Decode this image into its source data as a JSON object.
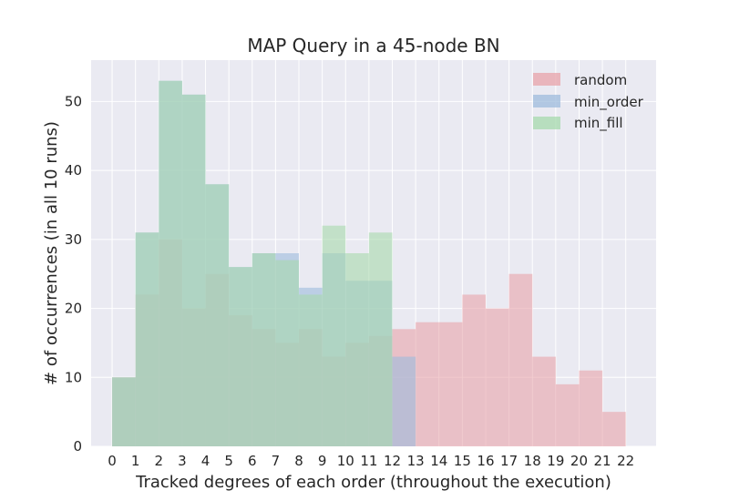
{
  "chart_data": {
    "type": "bar",
    "title": "MAP Query in a 45-node BN",
    "xlabel": "Tracked degrees of each order (throughout the execution)",
    "ylabel": "# of occurrences (in all 10 runs)",
    "x_ticks": [
      "0",
      "1",
      "2",
      "3",
      "4",
      "5",
      "6",
      "7",
      "8",
      "9",
      "10",
      "11",
      "12",
      "13",
      "14",
      "15",
      "16",
      "17",
      "18",
      "19",
      "20",
      "21",
      "22"
    ],
    "y_ticks": [
      "0",
      "10",
      "20",
      "30",
      "40",
      "50"
    ],
    "xlim": [
      -0.9,
      23.3
    ],
    "ylim": [
      0,
      56
    ],
    "grid": true,
    "legend_position": "top-right",
    "bin_width": 1,
    "series": [
      {
        "name": "random",
        "color": "#e8a3aa",
        "bin_starts": [
          0,
          1,
          2,
          3,
          4,
          5,
          6,
          7,
          8,
          9,
          10,
          11,
          12,
          13,
          14,
          15,
          16,
          17,
          18,
          19,
          20,
          21
        ],
        "values": [
          10,
          22,
          30,
          20,
          25,
          19,
          17,
          15,
          17,
          13,
          15,
          16,
          17,
          18,
          18,
          22,
          20,
          25,
          13,
          9,
          11,
          5
        ]
      },
      {
        "name": "min_order",
        "color": "#9dbbdc",
        "bin_starts": [
          0,
          1,
          2,
          3,
          4,
          5,
          6,
          7,
          8,
          9,
          10,
          11,
          12
        ],
        "values": [
          10,
          31,
          53,
          51,
          38,
          26,
          28,
          28,
          23,
          28,
          24,
          24,
          13
        ]
      },
      {
        "name": "min_fill",
        "color": "#a6d9ac",
        "bin_starts": [
          0,
          1,
          2,
          3,
          4,
          5,
          6,
          7,
          8,
          9,
          10,
          11
        ],
        "values": [
          10,
          31,
          53,
          51,
          38,
          26,
          28,
          27,
          22,
          32,
          28,
          31
        ]
      }
    ]
  }
}
